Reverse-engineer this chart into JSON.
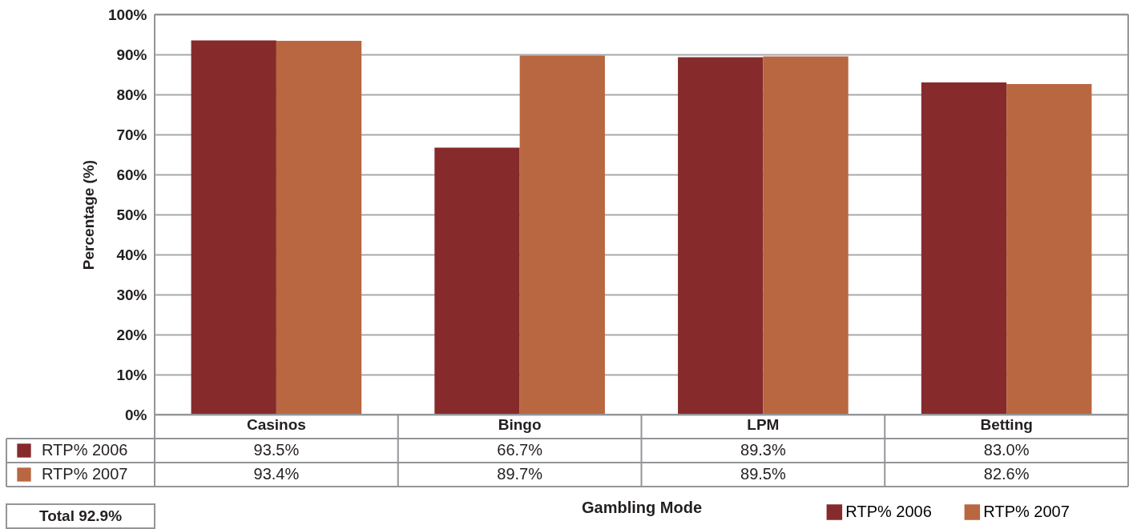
{
  "chart_data": {
    "type": "bar",
    "xlabel": "Gambling Mode",
    "ylabel": "Percentage (%)",
    "categories": [
      "Casinos",
      "Bingo",
      "LPM",
      "Betting"
    ],
    "series": [
      {
        "name": "RTP% 2006",
        "color": "#862a2b",
        "values": [
          93.5,
          66.7,
          89.3,
          83.0
        ],
        "value_labels": [
          "93.5%",
          "66.7%",
          "89.3%",
          "83.0%"
        ]
      },
      {
        "name": "RTP% 2007",
        "color": "#b86740",
        "values": [
          93.4,
          89.7,
          89.5,
          82.6
        ],
        "value_labels": [
          "93.4%",
          "89.7%",
          "89.5%",
          "82.6%"
        ]
      }
    ],
    "ylim": [
      0,
      100
    ],
    "yticks": [
      {
        "value": 0,
        "label": "0%"
      },
      {
        "value": 10,
        "label": "10%"
      },
      {
        "value": 20,
        "label": "20%"
      },
      {
        "value": 30,
        "label": "30%"
      },
      {
        "value": 40,
        "label": "40%"
      },
      {
        "value": 50,
        "label": "50%"
      },
      {
        "value": 60,
        "label": "60%"
      },
      {
        "value": 70,
        "label": "70%"
      },
      {
        "value": 80,
        "label": "80%"
      },
      {
        "value": 90,
        "label": "90%"
      },
      {
        "value": 100,
        "label": "100%"
      }
    ],
    "grid": true,
    "legend": "bottom",
    "annotations": [
      "Total 92.9%"
    ]
  }
}
